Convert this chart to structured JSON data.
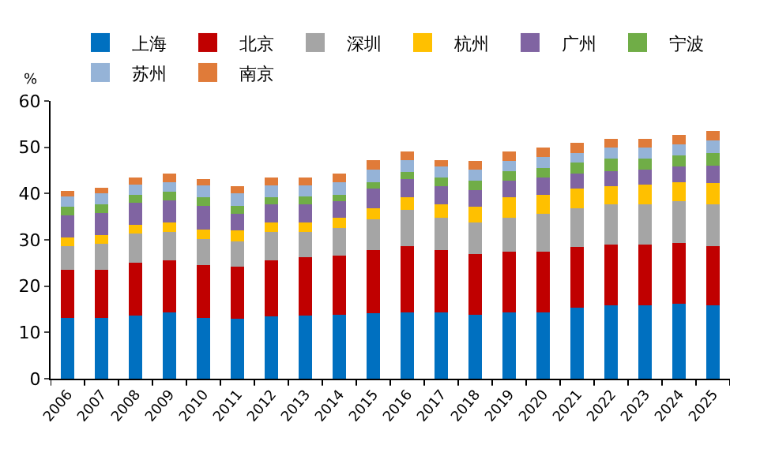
{
  "chart_data": {
    "type": "bar",
    "stacked": true,
    "ylabel": "%",
    "legend": "top",
    "grid": false,
    "categories": [
      "2006",
      "2007",
      "2008",
      "2009",
      "2010",
      "2011",
      "2012",
      "2013",
      "2014",
      "2015",
      "2016",
      "2017",
      "2018",
      "2019",
      "2020",
      "2021",
      "2022",
      "2023",
      "2024",
      "2025"
    ],
    "ylim": [
      0,
      60
    ],
    "yticks": [
      0,
      10,
      20,
      30,
      40,
      50,
      60
    ],
    "series": [
      {
        "name": "上海",
        "color": "#0070c0",
        "values": [
          13.1,
          13.1,
          13.6,
          14.4,
          13.1,
          12.9,
          13.5,
          13.6,
          13.8,
          14.1,
          14.4,
          14.4,
          13.8,
          14.4,
          14.4,
          15.3,
          15.9,
          15.9,
          16.2,
          15.9
        ]
      },
      {
        "name": "北京",
        "color": "#c00000",
        "values": [
          10.5,
          10.5,
          11.5,
          11.2,
          11.4,
          11.3,
          12.1,
          12.7,
          12.8,
          13.7,
          14.3,
          13.4,
          13.1,
          13.1,
          13.1,
          13.1,
          13.1,
          13.1,
          13.1,
          12.8
        ]
      },
      {
        "name": "深圳",
        "color": "#a5a5a5",
        "values": [
          5.1,
          5.6,
          6.3,
          6.1,
          5.7,
          5.4,
          6.1,
          5.4,
          6.0,
          6.6,
          7.8,
          6.9,
          6.9,
          7.2,
          8.1,
          8.4,
          8.7,
          8.7,
          9.0,
          9.0
        ]
      },
      {
        "name": "杭州",
        "color": "#ffc000",
        "values": [
          1.8,
          1.8,
          1.8,
          2.1,
          2.1,
          2.4,
          2.1,
          2.1,
          2.1,
          2.4,
          2.7,
          3.0,
          3.3,
          4.5,
          4.2,
          4.2,
          3.9,
          4.2,
          4.2,
          4.5
        ]
      },
      {
        "name": "广州",
        "color": "#8064a2",
        "values": [
          4.8,
          4.8,
          4.8,
          4.8,
          5.1,
          3.6,
          3.9,
          3.9,
          3.6,
          4.2,
          3.9,
          3.9,
          3.6,
          3.6,
          3.6,
          3.3,
          3.3,
          3.3,
          3.3,
          3.9
        ]
      },
      {
        "name": "宁波",
        "color": "#70ad47",
        "values": [
          1.8,
          1.8,
          1.8,
          1.8,
          1.8,
          1.8,
          1.5,
          1.6,
          1.5,
          1.4,
          1.5,
          1.8,
          2.1,
          2.1,
          2.1,
          2.4,
          2.7,
          2.4,
          2.4,
          2.7
        ]
      },
      {
        "name": "苏州",
        "color": "#95b3d7",
        "values": [
          2.3,
          2.5,
          2.1,
          2.1,
          2.5,
          2.7,
          2.5,
          2.4,
          2.7,
          2.7,
          2.7,
          2.4,
          2.4,
          2.1,
          2.4,
          2.1,
          2.4,
          2.4,
          2.4,
          2.7
        ]
      },
      {
        "name": "南京",
        "color": "#e07b39",
        "values": [
          1.1,
          1.2,
          1.5,
          1.8,
          1.4,
          1.5,
          1.7,
          1.7,
          1.9,
          2.2,
          1.8,
          1.5,
          1.8,
          2.1,
          2.1,
          2.1,
          1.8,
          1.8,
          2.1,
          2.1
        ]
      }
    ]
  }
}
